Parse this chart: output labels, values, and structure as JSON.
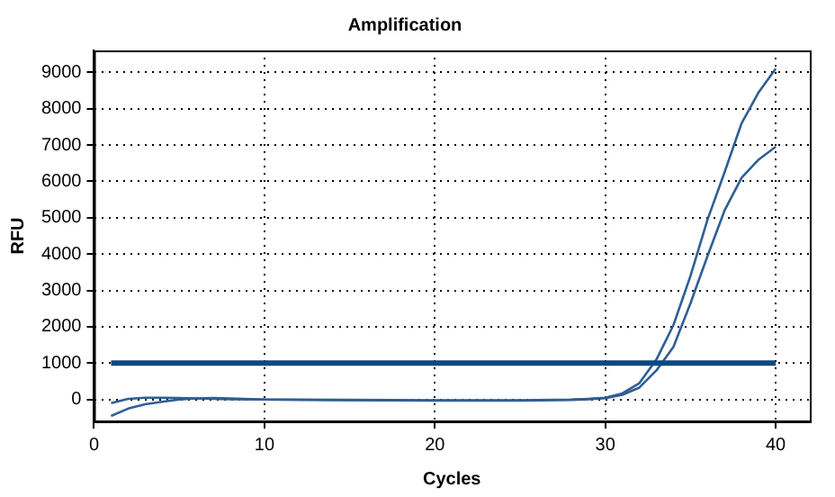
{
  "chart_data": {
    "type": "line",
    "title": "Amplification",
    "xlabel": "Cycles",
    "ylabel": "RFU",
    "xlim": [
      0,
      42
    ],
    "xticks": [
      0,
      10,
      20,
      30,
      40
    ],
    "ylim": [
      -600,
      9600
    ],
    "yticks": [
      0,
      1000,
      2000,
      3000,
      4000,
      5000,
      6000,
      7000,
      8000,
      9000
    ],
    "grid": true,
    "legend": false,
    "marker": "none",
    "line_style": "solid",
    "series": [
      {
        "color": "#2f5f93",
        "x": [
          1,
          2,
          3,
          4,
          5,
          6,
          8,
          10,
          15,
          20,
          25,
          28,
          29,
          30,
          31,
          32,
          33,
          34,
          35,
          36,
          37,
          38,
          39,
          40
        ],
        "values": [
          -100,
          20,
          50,
          50,
          40,
          30,
          10,
          0,
          -10,
          -20,
          -20,
          0,
          20,
          50,
          170,
          450,
          1100,
          2050,
          3400,
          4950,
          6250,
          7600,
          8450,
          9100
        ]
      },
      {
        "color": "#2f5f93",
        "x": [
          1,
          2,
          3,
          4,
          5,
          6,
          7,
          8,
          10,
          15,
          20,
          25,
          28,
          29,
          30,
          31,
          32,
          33,
          34,
          35,
          36,
          37,
          38,
          39,
          40
        ],
        "values": [
          -450,
          -250,
          -130,
          -60,
          0,
          30,
          40,
          30,
          0,
          -20,
          -30,
          -30,
          -10,
          10,
          40,
          130,
          330,
          800,
          1450,
          2650,
          3950,
          5200,
          6100,
          6600,
          6950
        ]
      }
    ],
    "ref_lines": [
      {
        "axis": "y",
        "value": 1000,
        "color": "#0b4a80"
      }
    ]
  }
}
